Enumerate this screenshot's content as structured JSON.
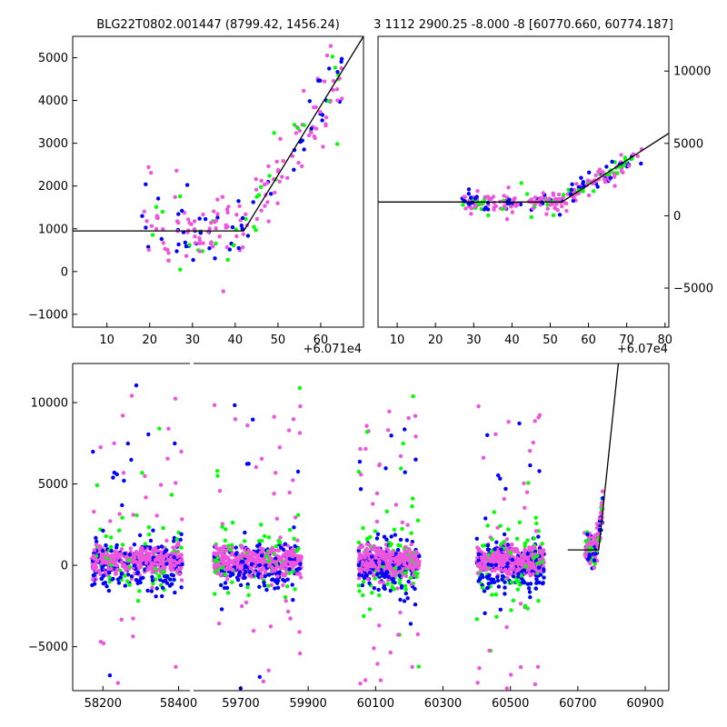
{
  "chart_data": [
    {
      "id": "top-left",
      "type": "scatter",
      "title": "BLG22T0802.001447 (8799.42, 1456.24)",
      "x_offset_label": "+6.071e4",
      "xlim": [
        2,
        70
      ],
      "ylim": [
        -1300,
        5500
      ],
      "xticks": [
        10,
        20,
        30,
        40,
        50,
        60
      ],
      "yticks": [
        -1000,
        0,
        1000,
        2000,
        3000,
        4000,
        5000
      ],
      "ytick_side": "left",
      "model_line": [
        [
          2,
          950
        ],
        [
          42,
          950
        ],
        [
          70,
          5500
        ]
      ],
      "colors": {
        "a": "#00ff00",
        "b": "#0000ff",
        "c": "#ee55dd"
      },
      "seed": 11,
      "cloud": {
        "x_min": 17,
        "x_max": 65,
        "flat_x_end": 42,
        "flat_y": 950,
        "slope": 160,
        "spread": 600,
        "n": 220
      }
    },
    {
      "id": "top-right",
      "type": "scatter",
      "title": "3 1112 2900.25 -8.000 -8 [60770.660, 60774.187]",
      "x_offset_label": "+6.07e4",
      "xlim": [
        5,
        81
      ],
      "ylim": [
        -7700,
        12400
      ],
      "xticks": [
        10,
        20,
        30,
        40,
        50,
        60,
        70,
        80
      ],
      "yticks": [
        -5000,
        0,
        5000,
        10000
      ],
      "ytick_side": "right",
      "model_line": [
        [
          5,
          950
        ],
        [
          53,
          950
        ],
        [
          81,
          5700
        ]
      ],
      "colors": {
        "a": "#00ff00",
        "b": "#0000ff",
        "c": "#ee55dd"
      },
      "seed": 23,
      "cloud": {
        "x_min": 27,
        "x_max": 74,
        "flat_x_end": 52,
        "flat_y": 950,
        "slope": 150,
        "spread": 450,
        "n": 260
      }
    },
    {
      "id": "bottom",
      "type": "scatter",
      "x_offset_label": "",
      "ylim": [
        -7700,
        12400
      ],
      "yticks": [
        -5000,
        0,
        5000,
        10000
      ],
      "ytick_side": "left",
      "segments": [
        {
          "xlim": [
            58120,
            58430
          ],
          "xticks": [
            58200,
            58400
          ]
        },
        {
          "xlim": [
            59560,
            60970
          ],
          "xticks": [
            59700,
            59900,
            60100,
            60300,
            60500,
            60700,
            60900
          ]
        }
      ],
      "seasons": [
        [
          58170,
          58410
        ],
        [
          59620,
          59880
        ],
        [
          60050,
          60230
        ],
        [
          60400,
          60600
        ]
      ],
      "event": {
        "x_min": 60720,
        "x_max": 60775,
        "flat_x_end": 60755,
        "flat_y": 950,
        "slope": 140
      },
      "model_line": [
        [
          60670,
          950
        ],
        [
          60762,
          950
        ],
        [
          60820,
          12400
        ]
      ],
      "colors": {
        "a": "#00ff00",
        "b": "#0000ff",
        "c": "#ee55dd"
      },
      "seed": 37
    }
  ]
}
